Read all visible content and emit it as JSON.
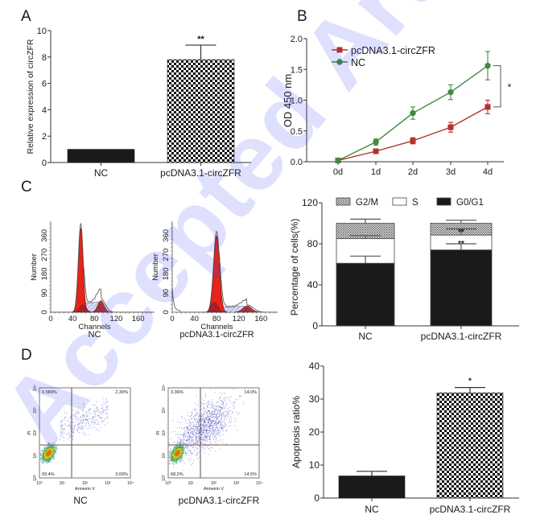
{
  "watermark": "Accepted Article",
  "panel_labels": {
    "a": "A",
    "b": "B",
    "c": "C",
    "d": "D"
  },
  "colors": {
    "red": "#b2342c",
    "green": "#3f8a3f",
    "black": "#1a1a1a",
    "histogram_red": "#e8231c",
    "watermark": "#2f3cf5"
  },
  "chart_data": [
    {
      "id": "A",
      "type": "bar",
      "title": "",
      "xlabel": "",
      "ylabel": "Relative expression of circZFR",
      "categories": [
        "NC",
        "pcDNA3.1-circZFR"
      ],
      "values": [
        1.0,
        7.8
      ],
      "errors": [
        0,
        1.1
      ],
      "fills": [
        "solid",
        "checker"
      ],
      "significance": [
        "",
        "**"
      ],
      "ylim": [
        0,
        10
      ],
      "yticks": [
        0,
        2,
        4,
        6,
        8,
        10
      ],
      "grid": false
    },
    {
      "id": "B",
      "type": "line",
      "xlabel": "",
      "ylabel": "OD 450 nm",
      "x": [
        "0d",
        "1d",
        "2d",
        "3d",
        "4d"
      ],
      "series": [
        {
          "name": "pcDNA3.1-circZFR",
          "marker": "square",
          "color": "#b2342c",
          "values": [
            0.02,
            0.17,
            0.34,
            0.56,
            0.89
          ],
          "errors": [
            0.02,
            0.02,
            0.05,
            0.08,
            0.11
          ]
        },
        {
          "name": "NC",
          "marker": "circle",
          "color": "#3f8a3f",
          "values": [
            0.02,
            0.32,
            0.79,
            1.13,
            1.56
          ],
          "errors": [
            0.02,
            0.05,
            0.1,
            0.12,
            0.23
          ]
        }
      ],
      "significance": "*",
      "ylim": [
        0,
        2.0
      ],
      "yticks": [
        0.0,
        0.5,
        1.0,
        1.5,
        2.0
      ],
      "legend": "top-left",
      "grid": false
    },
    {
      "id": "C-histograms",
      "type": "area",
      "ylabel": "Number",
      "xlabel": "Channels",
      "yticks": [
        0,
        90,
        180,
        270,
        360
      ],
      "xticks": [
        0,
        40,
        80,
        120,
        160
      ],
      "panels": [
        {
          "name": "NC",
          "g1_peak_channel": 55,
          "g2_peak_channel": 92
        },
        {
          "name": "pcDNA3.1-circZFR",
          "g1_peak_channel": 80,
          "g2_peak_channel": 135
        }
      ]
    },
    {
      "id": "C-stacked",
      "type": "bar",
      "stacked": true,
      "ylabel": "Percentage of cells(%)",
      "categories": [
        "NC",
        "pcDNA3.1-circZFR"
      ],
      "series": [
        {
          "name": "G0/G1",
          "fill": "solid",
          "values": [
            61,
            74
          ],
          "errors": [
            7,
            6
          ]
        },
        {
          "name": "S",
          "fill": "white",
          "values": [
            24,
            14.5
          ],
          "errors": [
            3,
            6
          ]
        },
        {
          "name": "G2/M",
          "fill": "dotted",
          "values": [
            15,
            11.5
          ],
          "errors": [
            4,
            3
          ]
        }
      ],
      "legend_order": [
        "G2/M",
        "S",
        "G0/G1"
      ],
      "significance": {
        "pcDNA3.1-circZFR": {
          "S": "**",
          "G2/M": "**"
        }
      },
      "ylim": [
        0,
        120
      ],
      "yticks": [
        0,
        40,
        80,
        120
      ],
      "legend": "top"
    },
    {
      "id": "D-flow",
      "type": "scatter",
      "xlabel": "Annexin V",
      "ylabel": "PI",
      "axis_ticks": [
        "10⁰",
        "10¹",
        "10²",
        "10³",
        "10⁴"
      ],
      "panels": [
        {
          "name": "NC",
          "quadrants": {
            "UL": "0.589%",
            "UR": "2.30%",
            "LL": "93.4%",
            "LR": "3.69%"
          }
        },
        {
          "name": "pcDNA3.1-circZFR",
          "quadrants": {
            "UL": "3.36%",
            "UR": "14.0%",
            "LL": "68.2%",
            "LR": "14.5%"
          }
        }
      ]
    },
    {
      "id": "D-bar",
      "type": "bar",
      "ylabel": "Apoptosis ratio%",
      "categories": [
        "NC",
        "pcDNA3.1-circZFR"
      ],
      "values": [
        6.7,
        31.9
      ],
      "errors": [
        1.4,
        1.6
      ],
      "fills": [
        "solid",
        "checker"
      ],
      "significance": [
        "",
        "*"
      ],
      "ylim": [
        0,
        40
      ],
      "yticks": [
        0,
        10,
        20,
        30,
        40
      ],
      "grid": false
    }
  ]
}
